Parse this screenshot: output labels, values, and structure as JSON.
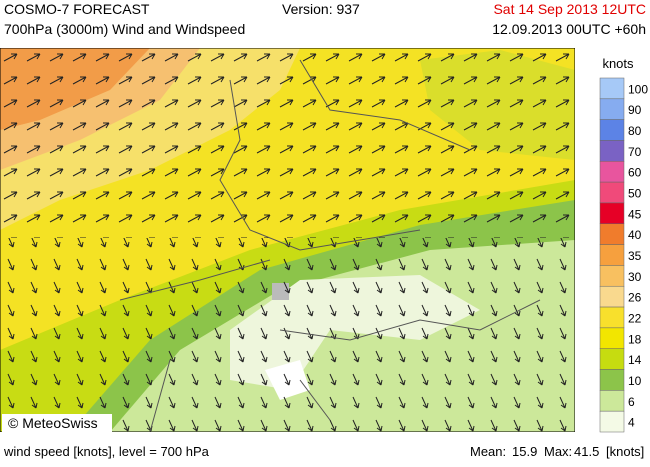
{
  "header": {
    "title": "COSMO-7 FORECAST",
    "subtitle": "700hPa (3000m) Wind and Windspeed",
    "version": "Version: 937",
    "valid_time": "Sat 14 Sep 2013 12UTC",
    "run_time": "12.09.2013 00UTC +60h"
  },
  "legend": {
    "title": "knots",
    "items": [
      {
        "label": 100,
        "color": "#a6c9f7"
      },
      {
        "label": 90,
        "color": "#86acf0"
      },
      {
        "label": 80,
        "color": "#5c83e6"
      },
      {
        "label": 70,
        "color": "#7a62c4"
      },
      {
        "label": 60,
        "color": "#e8559e"
      },
      {
        "label": 50,
        "color": "#f04a7a"
      },
      {
        "label": 45,
        "color": "#e60026"
      },
      {
        "label": 40,
        "color": "#f07c2c"
      },
      {
        "label": 35,
        "color": "#f6a03e"
      },
      {
        "label": 30,
        "color": "#f8c060"
      },
      {
        "label": 26,
        "color": "#f9d98e"
      },
      {
        "label": 22,
        "color": "#f8e02c"
      },
      {
        "label": 18,
        "color": "#f2e600"
      },
      {
        "label": 14,
        "color": "#c6dc10"
      },
      {
        "label": 10,
        "color": "#8cc44a"
      },
      {
        "label": 6,
        "color": "#cce89a"
      },
      {
        "label": 4,
        "color": "#f4fae6"
      }
    ]
  },
  "copyright": "© MeteoSwiss",
  "footer": {
    "left": "wind speed [knots], level = 700 hPa",
    "mean_label": "Mean:",
    "mean": 15.9,
    "max_label": "Max:",
    "max": 41.5,
    "unit": "[knots]"
  }
}
